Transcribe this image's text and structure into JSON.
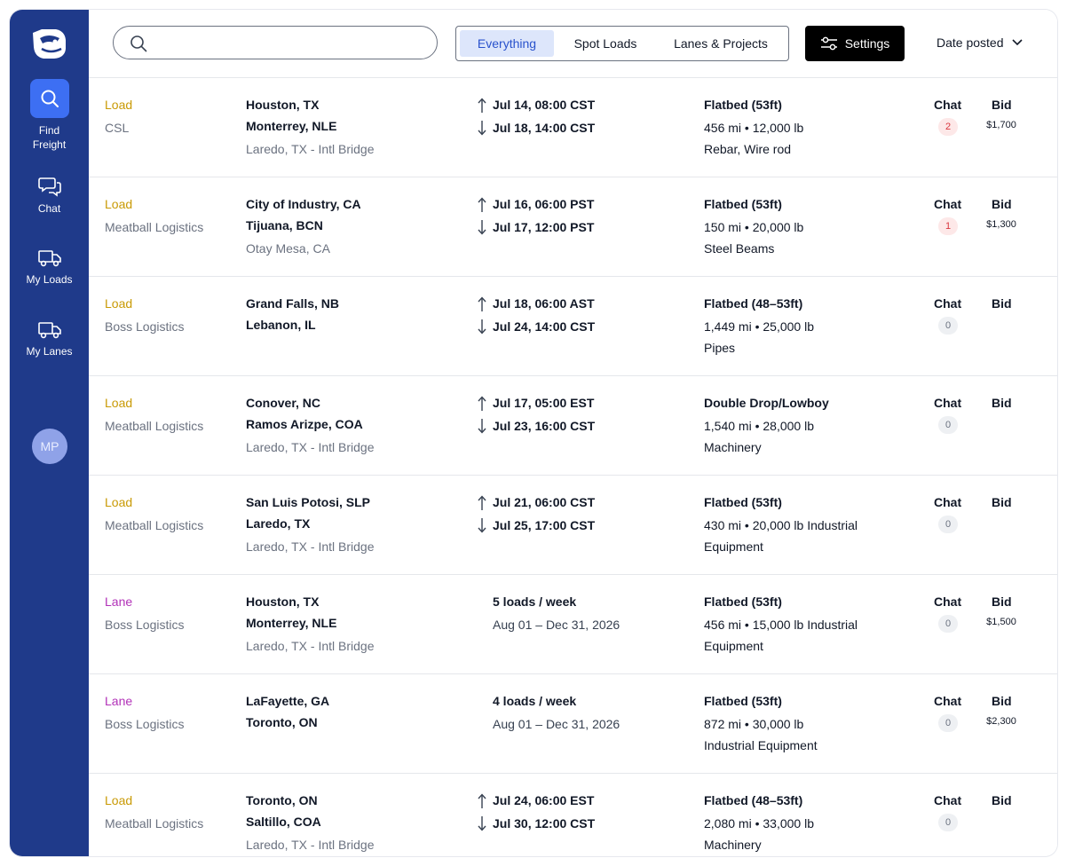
{
  "sidebar": {
    "items": [
      {
        "label1": "Find",
        "label2": "Freight"
      },
      {
        "label1": "Chat"
      },
      {
        "label1": "My Loads"
      },
      {
        "label1": "My Lanes"
      }
    ],
    "avatar": "MP"
  },
  "topbar": {
    "search_placeholder": "",
    "segments": [
      "Everything",
      "Spot Loads",
      "Lanes & Projects"
    ],
    "settings_label": "Settings",
    "sort_label": "Date posted"
  },
  "colors": {
    "sidebar": "#1f3a8a",
    "active": "#3d6ff3",
    "load": "#c99a05",
    "lane": "#b232b8"
  },
  "rows": [
    {
      "kind": "Load",
      "company": "CSL",
      "origin": "Houston, TX",
      "dest": "Monterrey, NLE",
      "via": "Laredo, TX - Intl Bridge",
      "pick": "Jul 14, 08:00 CST",
      "drop": "Jul 18, 14:00 CST",
      "equip": "Flatbed (53ft)",
      "specs": "456 mi • 12,000 lb",
      "specs2": "Rebar, Wire rod",
      "chat_label": "Chat",
      "chat_count": "2",
      "bid_label": "Bid",
      "bid": "$1,700"
    },
    {
      "kind": "Load",
      "company": "Meatball Logistics",
      "origin": "City of Industry, CA",
      "dest": "Tijuana, BCN",
      "via": "Otay Mesa, CA",
      "pick": "Jul 16, 06:00 PST",
      "drop": "Jul 17, 12:00 PST",
      "equip": "Flatbed (53ft)",
      "specs": "150 mi • 20,000 lb",
      "specs2": "Steel Beams",
      "chat_label": "Chat",
      "chat_count": "1",
      "bid_label": "Bid",
      "bid": "$1,300"
    },
    {
      "kind": "Load",
      "company": "Boss Logistics",
      "origin": "Grand Falls, NB",
      "dest": "Lebanon, IL",
      "via": "",
      "pick": "Jul 18, 06:00 AST",
      "drop": "Jul 24, 14:00 CST",
      "equip": "Flatbed (48–53ft)",
      "specs": "1,449 mi • 25,000 lb",
      "specs2": "Pipes",
      "chat_label": "Chat",
      "chat_count": "0",
      "bid_label": "Bid",
      "bid": ""
    },
    {
      "kind": "Load",
      "company": "Meatball Logistics",
      "origin": "Conover, NC",
      "dest": "Ramos Arizpe, COA",
      "via": "Laredo, TX - Intl Bridge",
      "pick": "Jul 17, 05:00 EST",
      "drop": "Jul 23, 16:00 CST",
      "equip": "Double Drop/Lowboy",
      "specs": "1,540 mi • 28,000 lb",
      "specs2": "Machinery",
      "chat_label": "Chat",
      "chat_count": "0",
      "bid_label": "Bid",
      "bid": ""
    },
    {
      "kind": "Load",
      "company": "Meatball Logistics",
      "origin": "San Luis Potosi, SLP",
      "dest": "Laredo, TX",
      "via": "Laredo, TX - Intl Bridge",
      "pick": "Jul 21, 06:00 CST",
      "drop": "Jul 25, 17:00 CST",
      "equip": "Flatbed (53ft)",
      "specs": "430 mi • 20,000 lb Industrial",
      "specs2": "Equipment",
      "chat_label": "Chat",
      "chat_count": "0",
      "bid_label": "Bid",
      "bid": ""
    },
    {
      "kind": "Lane",
      "company": "Boss Logistics",
      "origin": "Houston, TX",
      "dest": "Monterrey, NLE",
      "via": "Laredo, TX - Intl Bridge",
      "freq": "5 loads / week",
      "range": "Aug 01 – Dec 31, 2026",
      "equip": "Flatbed (53ft)",
      "specs": "456 mi • 15,000 lb Industrial",
      "specs2": "Equipment",
      "chat_label": "Chat",
      "chat_count": "0",
      "bid_label": "Bid",
      "bid": "$1,500"
    },
    {
      "kind": "Lane",
      "company": "Boss Logistics",
      "origin": "LaFayette, GA",
      "dest": "Toronto, ON",
      "via": "",
      "freq": "4 loads / week",
      "range": "Aug 01 – Dec 31, 2026",
      "equip": "Flatbed (53ft)",
      "specs": "872 mi • 30,000 lb",
      "specs2": "Industrial Equipment",
      "chat_label": "Chat",
      "chat_count": "0",
      "bid_label": "Bid",
      "bid": "$2,300"
    },
    {
      "kind": "Load",
      "company": "Meatball Logistics",
      "origin": "Toronto, ON",
      "dest": "Saltillo, COA",
      "via": "Laredo, TX - Intl Bridge",
      "pick": "Jul 24, 06:00 EST",
      "drop": "Jul 30, 12:00 CST",
      "equip": "Flatbed (48–53ft)",
      "specs": "2,080 mi • 33,000 lb",
      "specs2": "Machinery",
      "chat_label": "Chat",
      "chat_count": "0",
      "bid_label": "Bid",
      "bid": ""
    }
  ]
}
